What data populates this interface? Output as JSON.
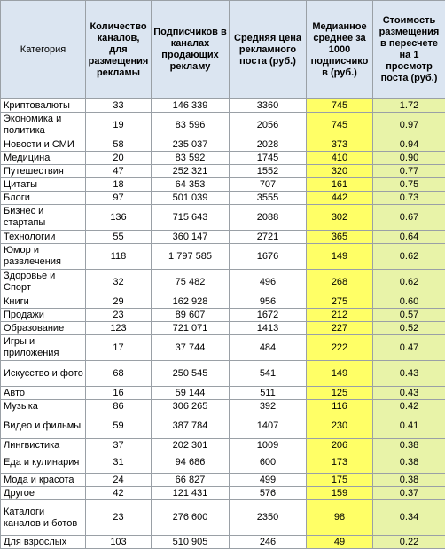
{
  "table": {
    "headers": [
      "Категория",
      "Количество каналов, для размещения рекламы",
      "Подписчиков в каналах продающих рекламу",
      "Средняя цена рекламного поста  (руб.)",
      "Медианное среднее за 1000 подписчико в (руб.)",
      "Стоимость размещения в пересчете на 1 просмотр поста (руб.)"
    ],
    "rows": [
      [
        "Криптовалюты",
        "33",
        "146 339",
        "3360",
        "745",
        "1.72"
      ],
      [
        "Экономика и политика",
        "19",
        "83 596",
        "2056",
        "745",
        "0.97"
      ],
      [
        "Новости и СМИ",
        "58",
        "235 037",
        "2028",
        "373",
        "0.94"
      ],
      [
        "Медицина",
        "20",
        "83 592",
        "1745",
        "410",
        "0.90"
      ],
      [
        "Путешествия",
        "47",
        "252 321",
        "1552",
        "320",
        "0.77"
      ],
      [
        "Цитаты",
        "18",
        "64 353",
        "707",
        "161",
        "0.75"
      ],
      [
        "Блоги",
        "97",
        "501 039",
        "3555",
        "442",
        "0.73"
      ],
      [
        "Бизнес и стартапы",
        "136",
        "715 643",
        "2088",
        "302",
        "0.67"
      ],
      [
        "Технологии",
        "55",
        "360 147",
        "2721",
        "365",
        "0.64"
      ],
      [
        "Юмор и развлечения",
        "118",
        "1 797 585",
        "1676",
        "149",
        "0.62"
      ],
      [
        "Здоровье и Спорт",
        "32",
        "75 482",
        "496",
        "268",
        "0.62"
      ],
      [
        "Книги",
        "29",
        "162 928",
        "956",
        "275",
        "0.60"
      ],
      [
        "Продажи",
        "23",
        "89 607",
        "1672",
        "212",
        "0.57"
      ],
      [
        "Образование",
        "123",
        "721 071",
        "1413",
        "227",
        "0.52"
      ],
      [
        "Игры и приложения",
        "17",
        "37 744",
        "484",
        "222",
        "0.47"
      ],
      [
        "Искусство и фото",
        "68",
        "250 545",
        "541",
        "149",
        "0.43"
      ],
      [
        "Авто",
        "16",
        "59 144",
        "511",
        "125",
        "0.43"
      ],
      [
        "Музыка",
        "86",
        "306 265",
        "392",
        "116",
        "0.42"
      ],
      [
        "Видео и фильмы",
        "59",
        "387 784",
        "1407",
        "230",
        "0.41"
      ],
      [
        "Лингвистика",
        "37",
        "202 301",
        "1009",
        "206",
        "0.38"
      ],
      [
        "Еда и кулинария",
        "31",
        "94 686",
        "600",
        "173",
        "0.38"
      ],
      [
        "Мода и красота",
        "24",
        "66 827",
        "499",
        "175",
        "0.38"
      ],
      [
        "Другое",
        "42",
        "121 431",
        "576",
        "159",
        "0.37"
      ],
      [
        "Каталоги каналов и ботов",
        "23",
        "276 600",
        "2350",
        "98",
        "0.34"
      ],
      [
        "Для взрослых",
        "103",
        "510 905",
        "246",
        "49",
        "0.22"
      ]
    ]
  }
}
